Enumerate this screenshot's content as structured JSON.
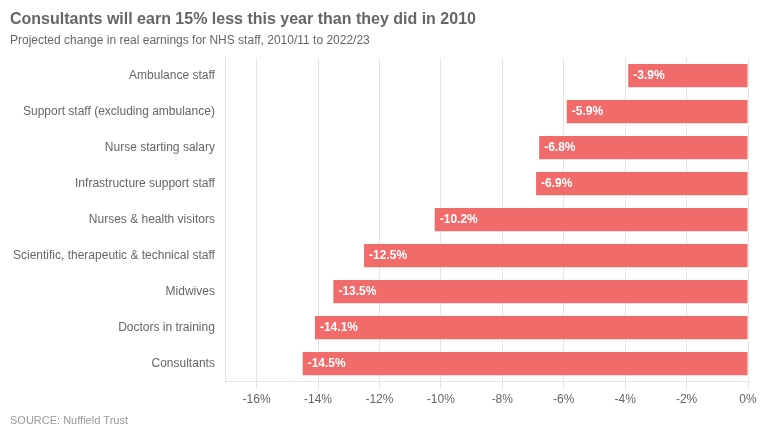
{
  "chart_data": {
    "type": "bar",
    "orientation": "horizontal",
    "title": "Consultants will earn 15% less this year than they did in 2010",
    "subtitle": "Projected change in real earnings for NHS staff, 2010/11 to 2022/23",
    "source": "SOURCE: Nuffield Trust",
    "categories": [
      "Ambulance staff",
      "Support staff (excluding ambulance)",
      "Nurse starting salary",
      "Infrastructure support staff",
      "Nurses & health visitors",
      "Scientific, therapeutic & technical staff",
      "Midwives",
      "Doctors in training",
      "Consultants"
    ],
    "values": [
      -3.9,
      -5.9,
      -6.8,
      -6.9,
      -10.2,
      -12.5,
      -13.5,
      -14.1,
      -14.5
    ],
    "value_labels": [
      "-3.9%",
      "-5.9%",
      "-6.8%",
      "-6.9%",
      "-10.2%",
      "-12.5%",
      "-13.5%",
      "-14.1%",
      "-14.5%"
    ],
    "data_labels": true,
    "color": "#f26b6b",
    "xlim": [
      -17,
      0
    ],
    "xticks": [
      {
        "value": -16,
        "label": "-16%"
      },
      {
        "value": -14,
        "label": "-14%"
      },
      {
        "value": -12,
        "label": "-12%"
      },
      {
        "value": -10,
        "label": "-10%"
      },
      {
        "value": -8,
        "label": "-8%"
      },
      {
        "value": -6,
        "label": "-6%"
      },
      {
        "value": -4,
        "label": "-4%"
      },
      {
        "value": -2,
        "label": "-2%"
      },
      {
        "value": 0,
        "label": "0%"
      }
    ],
    "grid": true
  }
}
